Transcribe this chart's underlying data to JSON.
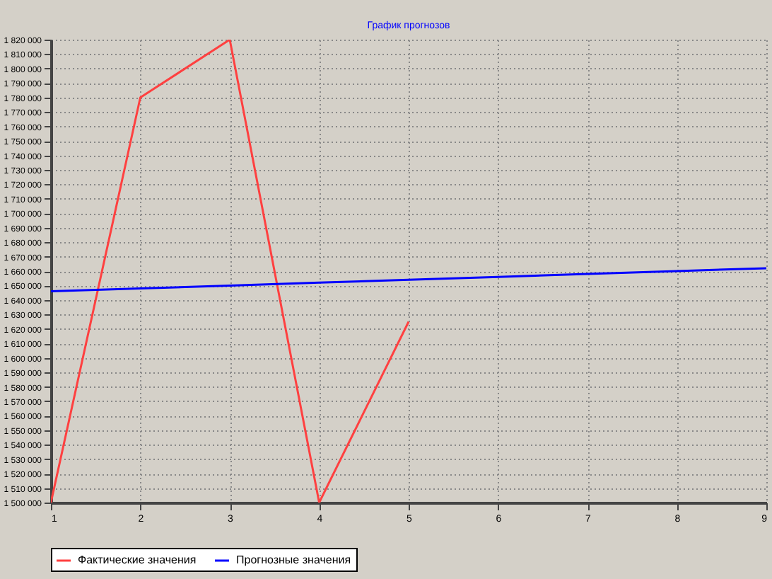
{
  "chart_data": {
    "type": "line",
    "title": "График прогнозов",
    "x": [
      1,
      2,
      3,
      4,
      5,
      6,
      7,
      8,
      9
    ],
    "series": [
      {
        "name": "Фактические значения",
        "color": "#ff4040",
        "values": [
          1500000,
          1780000,
          1820000,
          1500000,
          1625000,
          null,
          null,
          null,
          null
        ]
      },
      {
        "name": "Прогнозные значения",
        "color": "#0000ff",
        "values": [
          1646000,
          1648000,
          1650000,
          1652000,
          1654000,
          1656000,
          1658000,
          1660000,
          1662000
        ]
      }
    ],
    "xlim": [
      1,
      9
    ],
    "xticks": [
      1,
      2,
      3,
      4,
      5,
      6,
      7,
      8,
      9
    ],
    "ylim": [
      1500000,
      1820000
    ],
    "yticks": [
      {
        "value": 1500000,
        "label": "1 500 000"
      },
      {
        "value": 1510000,
        "label": "1 510 000"
      },
      {
        "value": 1520000,
        "label": "1 520 000"
      },
      {
        "value": 1530000,
        "label": "1 530 000"
      },
      {
        "value": 1540000,
        "label": "1 540 000"
      },
      {
        "value": 1550000,
        "label": "1 550 000"
      },
      {
        "value": 1560000,
        "label": "1 560 000"
      },
      {
        "value": 1570000,
        "label": "1 570 000"
      },
      {
        "value": 1580000,
        "label": "1 580 000"
      },
      {
        "value": 1590000,
        "label": "1 590 000"
      },
      {
        "value": 1600000,
        "label": "1 600 000"
      },
      {
        "value": 1610000,
        "label": "1 610 000"
      },
      {
        "value": 1620000,
        "label": "1 620 000"
      },
      {
        "value": 1630000,
        "label": "1 630 000"
      },
      {
        "value": 1640000,
        "label": "1 640 000"
      },
      {
        "value": 1650000,
        "label": "1 650 000"
      },
      {
        "value": 1660000,
        "label": "1 660 000"
      },
      {
        "value": 1670000,
        "label": "1 670 000"
      },
      {
        "value": 1680000,
        "label": "1 680 000"
      },
      {
        "value": 1690000,
        "label": "1 690 000"
      },
      {
        "value": 1700000,
        "label": "1 700 000"
      },
      {
        "value": 1710000,
        "label": "1 710 000"
      },
      {
        "value": 1720000,
        "label": "1 720 000"
      },
      {
        "value": 1730000,
        "label": "1 730 000"
      },
      {
        "value": 1740000,
        "label": "1 740 000"
      },
      {
        "value": 1750000,
        "label": "1 750 000"
      },
      {
        "value": 1760000,
        "label": "1 760 000"
      },
      {
        "value": 1770000,
        "label": "1 770 000"
      },
      {
        "value": 1780000,
        "label": "1 780 000"
      },
      {
        "value": 1790000,
        "label": "1 790 000"
      },
      {
        "value": 1800000,
        "label": "1 800 000"
      },
      {
        "value": 1810000,
        "label": "1 810 000"
      },
      {
        "value": 1820000,
        "label": "1 820 000"
      }
    ],
    "grid": true,
    "legend": "bottom",
    "marker": "none",
    "line_style": "solid"
  }
}
